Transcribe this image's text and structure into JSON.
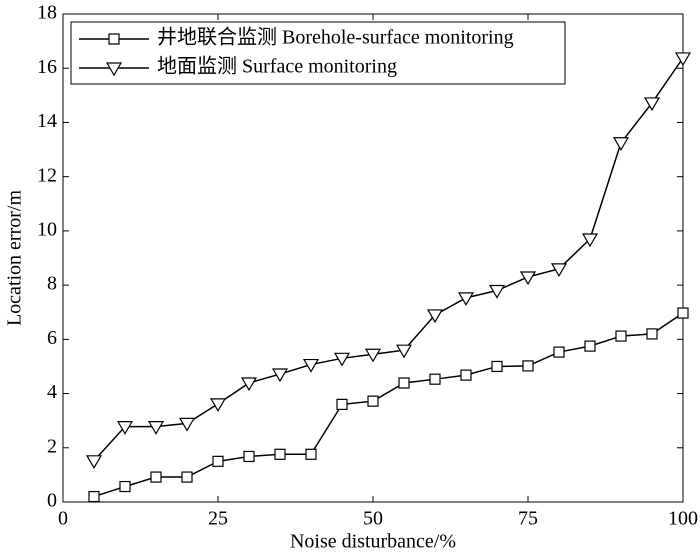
{
  "chart_data": {
    "type": "line",
    "x_label": "Noise disturbance/%",
    "y_label": "Location error/m",
    "x": [
      5,
      10,
      15,
      20,
      25,
      30,
      35,
      40,
      45,
      50,
      55,
      60,
      65,
      70,
      75,
      80,
      85,
      90,
      95,
      100
    ],
    "series": [
      {
        "name": "井地联合监测 Borehole-surface monitoring",
        "color": "#000000",
        "marker": "square",
        "values": [
          0.2,
          0.57,
          0.92,
          0.92,
          1.5,
          1.68,
          1.76,
          1.76,
          3.6,
          3.72,
          4.39,
          4.53,
          4.68,
          5.0,
          5.02,
          5.53,
          5.75,
          6.12,
          6.2,
          6.97
        ]
      },
      {
        "name": "地面监测 Surface monitoring",
        "color": "#000000",
        "marker": "triangle-down",
        "values": [
          1.52,
          2.78,
          2.78,
          2.9,
          3.62,
          4.39,
          4.72,
          5.07,
          5.3,
          5.45,
          5.6,
          6.9,
          7.53,
          7.8,
          8.3,
          8.6,
          9.7,
          13.25,
          14.72,
          16.38
        ]
      }
    ],
    "xlim": [
      0,
      100
    ],
    "xticks": [
      0,
      25,
      50,
      75,
      100
    ],
    "ylim": [
      0,
      18
    ],
    "yticks": [
      0,
      2,
      4,
      6,
      8,
      10,
      12,
      14,
      16,
      18
    ],
    "legend": "upper left"
  }
}
